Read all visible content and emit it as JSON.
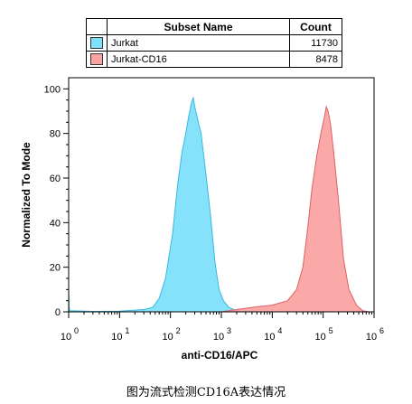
{
  "legend": {
    "header_name": "Subset Name",
    "header_count": "Count",
    "rows": [
      {
        "name": "Jurkat",
        "count": "11730",
        "color": "#7fe0fb"
      },
      {
        "name": "Jurkat-CD16",
        "count": "8478",
        "color": "#fba3a3"
      }
    ]
  },
  "caption": "图为流式检测CD16A表达情况",
  "chart_data": {
    "type": "area",
    "xlabel": "anti-CD16/APC",
    "ylabel": "Normalized To Mode",
    "x_scale": "log",
    "xlim": [
      1,
      1000000
    ],
    "ylim": [
      0,
      105
    ],
    "x_ticks": [
      {
        "value": 1,
        "label": "10",
        "exp": "0"
      },
      {
        "value": 10,
        "label": "10",
        "exp": "1"
      },
      {
        "value": 100,
        "label": "10",
        "exp": "2"
      },
      {
        "value": 1000,
        "label": "10",
        "exp": "3"
      },
      {
        "value": 10000,
        "label": "10",
        "exp": "4"
      },
      {
        "value": 100000,
        "label": "10",
        "exp": "5"
      },
      {
        "value": 1000000,
        "label": "10",
        "exp": "6"
      }
    ],
    "y_ticks": [
      0,
      20,
      40,
      60,
      80,
      100
    ],
    "grid": false,
    "series": [
      {
        "name": "Jurkat",
        "color": "#7fe0fb",
        "stroke": "#38b8e0",
        "points": [
          [
            1,
            10
          ],
          [
            1.02,
            2
          ],
          [
            1.05,
            0.5
          ],
          [
            3,
            0.2
          ],
          [
            10,
            0.3
          ],
          [
            30,
            1
          ],
          [
            45,
            2
          ],
          [
            60,
            6
          ],
          [
            80,
            15
          ],
          [
            110,
            35
          ],
          [
            140,
            58
          ],
          [
            170,
            72
          ],
          [
            200,
            80
          ],
          [
            230,
            88
          ],
          [
            260,
            94
          ],
          [
            280,
            96
          ],
          [
            300,
            92
          ],
          [
            330,
            88
          ],
          [
            360,
            84
          ],
          [
            400,
            80
          ],
          [
            450,
            70
          ],
          [
            520,
            58
          ],
          [
            620,
            42
          ],
          [
            750,
            22
          ],
          [
            900,
            10
          ],
          [
            1100,
            5
          ],
          [
            1400,
            2
          ],
          [
            2000,
            0.5
          ],
          [
            3000,
            0
          ]
        ]
      },
      {
        "name": "Jurkat-CD16",
        "color": "#fba3a3",
        "stroke": "#e06060",
        "points": [
          [
            1000,
            0
          ],
          [
            2000,
            1
          ],
          [
            4000,
            2
          ],
          [
            10000,
            3
          ],
          [
            20000,
            5
          ],
          [
            30000,
            10
          ],
          [
            40000,
            20
          ],
          [
            50000,
            38
          ],
          [
            60000,
            55
          ],
          [
            75000,
            70
          ],
          [
            90000,
            80
          ],
          [
            105000,
            87
          ],
          [
            115000,
            92
          ],
          [
            125000,
            90
          ],
          [
            140000,
            84
          ],
          [
            160000,
            72
          ],
          [
            200000,
            50
          ],
          [
            250000,
            24
          ],
          [
            320000,
            10
          ],
          [
            450000,
            3
          ],
          [
            600000,
            0.5
          ],
          [
            800000,
            0
          ]
        ]
      }
    ]
  }
}
